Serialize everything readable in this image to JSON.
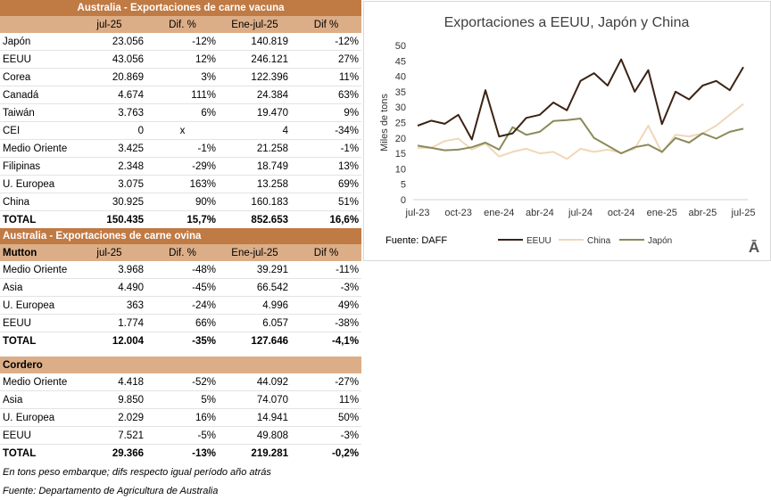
{
  "beef": {
    "title": "Australia - Exportaciones de carne vacuna",
    "headers": [
      "",
      "jul-25",
      "Dif. %",
      "Ene-jul-25",
      "Dif %"
    ],
    "rows": [
      [
        "Japón",
        "23.056",
        "-12%",
        "140.819",
        "-12%"
      ],
      [
        "EEUU",
        "43.056",
        "12%",
        "246.121",
        "27%"
      ],
      [
        "Corea",
        "20.869",
        "3%",
        "122.396",
        "11%"
      ],
      [
        "Canadá",
        "4.674",
        "111%",
        "24.384",
        "63%"
      ],
      [
        "Taiwán",
        "3.763",
        "6%",
        "19.470",
        "9%"
      ],
      [
        "CEI",
        "0",
        "x",
        "4",
        "-34%"
      ],
      [
        "Medio Oriente",
        "3.425",
        "-1%",
        "21.258",
        "-1%"
      ],
      [
        "Filipinas",
        "2.348",
        "-29%",
        "18.749",
        "13%"
      ],
      [
        "U. Europea",
        "3.075",
        "163%",
        "13.258",
        "69%"
      ],
      [
        "China",
        "30.925",
        "90%",
        "160.183",
        "51%"
      ]
    ],
    "total": [
      "TOTAL",
      "150.435",
      "15,7%",
      "852.653",
      "16,6%"
    ]
  },
  "sheep": {
    "title": "Australia - Exportaciones de carne ovina",
    "mutton": {
      "headers": [
        "Mutton",
        "jul-25",
        "Dif. %",
        "Ene-jul-25",
        "Dif %"
      ],
      "rows": [
        [
          "Medio Oriente",
          "3.968",
          "-48%",
          "39.291",
          "-11%"
        ],
        [
          "Asia",
          "4.490",
          "-45%",
          "66.542",
          "-3%"
        ],
        [
          "U. Europea",
          "363",
          "-24%",
          "4.996",
          "49%"
        ],
        [
          "EEUU",
          "1.774",
          "66%",
          "6.057",
          "-38%"
        ]
      ],
      "total": [
        "TOTAL",
        "12.004",
        "-35%",
        "127.646",
        "-4,1%"
      ]
    },
    "lamb": {
      "label": "Cordero",
      "rows": [
        [
          "Medio Oriente",
          "4.418",
          "-52%",
          "44.092",
          "-27%"
        ],
        [
          "Asia",
          "9.850",
          "5%",
          "74.070",
          "11%"
        ],
        [
          "U. Europea",
          "2.029",
          "16%",
          "14.941",
          "50%"
        ],
        [
          "EEUU",
          "7.521",
          "-5%",
          "49.808",
          "-3%"
        ]
      ],
      "total": [
        "TOTAL",
        "29.366",
        "-13%",
        "219.281",
        "-0,2%"
      ]
    }
  },
  "notes": {
    "units": "En tons peso embarque; difs respecto igual período año atrás",
    "source": "Fuente: Departamento de Agricultura de Australia"
  },
  "chart_data": {
    "type": "line",
    "title": "Exportaciones a EEUU, Japón y China",
    "ylabel": "Miles de tons",
    "source_label": "Fuente:  DAFF",
    "logo": "Ā",
    "ylim": [
      0,
      50
    ],
    "yticks": [
      0,
      5,
      10,
      15,
      20,
      25,
      30,
      35,
      40,
      45,
      50
    ],
    "x": [
      "jul-23",
      "ago-23",
      "sep-23",
      "oct-23",
      "nov-23",
      "dic-23",
      "ene-24",
      "feb-24",
      "mar-24",
      "abr-24",
      "may-24",
      "jun-24",
      "jul-24",
      "ago-24",
      "sep-24",
      "oct-24",
      "nov-24",
      "dic-24",
      "ene-25",
      "feb-25",
      "mar-25",
      "abr-25",
      "may-25",
      "jun-25",
      "jul-25"
    ],
    "xtick_labels": [
      "jul-23",
      "oct-23",
      "ene-24",
      "abr-24",
      "jul-24",
      "oct-24",
      "ene-25",
      "abr-25",
      "jul-25"
    ],
    "xtick_index": [
      0,
      3,
      6,
      9,
      12,
      15,
      18,
      21,
      24
    ],
    "series": [
      {
        "name": "EEUU",
        "color": "#3b2314",
        "values": [
          24,
          25.6,
          24.6,
          27.5,
          19.5,
          35.5,
          20.5,
          21.5,
          26.5,
          27.5,
          31.5,
          29,
          38.5,
          41,
          37,
          45.5,
          35,
          42,
          24.5,
          35,
          32.5,
          37,
          38.5,
          35.5,
          43
        ]
      },
      {
        "name": "China",
        "color": "#f0d7b8",
        "values": [
          16.8,
          16.8,
          19,
          19.8,
          16.2,
          18.2,
          14,
          15.5,
          16.5,
          15,
          15.5,
          13.2,
          16.5,
          15.5,
          16.2,
          15.2,
          16.5,
          24,
          15.2,
          21,
          20.5,
          21.5,
          24,
          27.5,
          31
        ]
      },
      {
        "name": "Japón",
        "color": "#8a8a5a",
        "values": [
          17.5,
          16.8,
          16,
          16.2,
          17,
          18.5,
          16.2,
          23.5,
          21,
          22,
          25.5,
          25.8,
          26.3,
          20,
          17.5,
          15,
          17,
          17.8,
          15.5,
          20,
          18.5,
          21.5,
          19.8,
          22,
          23
        ]
      }
    ]
  }
}
